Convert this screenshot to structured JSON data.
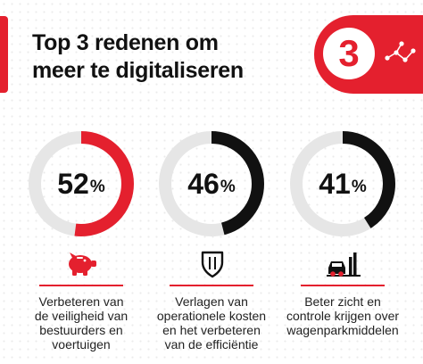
{
  "header": {
    "title_line1": "Top 3 redenen om",
    "title_line2": "meer te digitaliseren",
    "badge_number": "3",
    "badge_icon": "network-dots-icon"
  },
  "colors": {
    "accent": "#e4202e",
    "dark": "#111111",
    "track": "#e6e6e6"
  },
  "chart_data": {
    "type": "donut",
    "unit": "%",
    "max": 100,
    "items": [
      {
        "value": 52,
        "value_text": "52",
        "color": "#e4202e",
        "icon": "piggy-bank-icon",
        "label_lines": [
          "Verbeteren van",
          "de veiligheid van",
          "bestuurders en",
          "voertuigen"
        ]
      },
      {
        "value": 46,
        "value_text": "46",
        "color": "#111111",
        "icon": "shield-icon",
        "label_lines": [
          "Verlagen van",
          "operationele kosten",
          "en het verbeteren",
          "van de efficiëntie"
        ]
      },
      {
        "value": 41,
        "value_text": "41",
        "color": "#111111",
        "icon": "vehicle-chart-icon",
        "label_lines": [
          "Beter zicht en",
          "controle krijgen over",
          "wagenparkmiddelen"
        ]
      }
    ]
  }
}
